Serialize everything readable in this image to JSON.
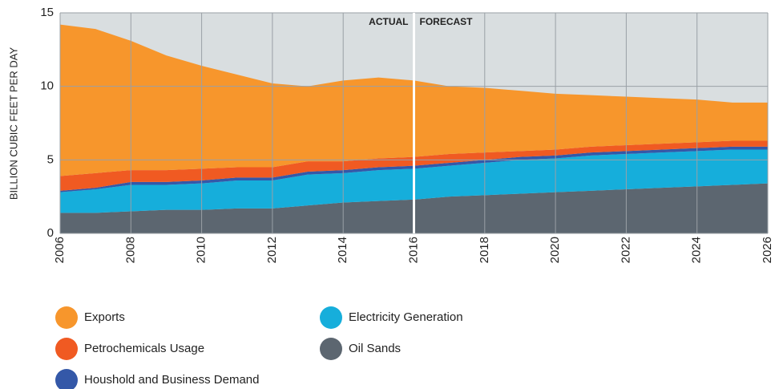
{
  "chart_data": {
    "type": "stacked_area",
    "y_label": "BILLION CUBIC FEET PER DAY",
    "annotations": [
      {
        "text": "ACTUAL",
        "side": "left"
      },
      {
        "text": "FORECAST",
        "side": "right"
      }
    ],
    "divider_x": 2016,
    "x": [
      2006,
      2007,
      2008,
      2009,
      2010,
      2011,
      2012,
      2013,
      2014,
      2015,
      2016,
      2017,
      2018,
      2019,
      2020,
      2021,
      2022,
      2023,
      2024,
      2025,
      2026
    ],
    "series": [
      {
        "name": "Oil Sands",
        "color": "#5c6670",
        "values": [
          1.4,
          1.4,
          1.5,
          1.6,
          1.6,
          1.7,
          1.7,
          1.9,
          2.1,
          2.2,
          2.3,
          2.5,
          2.6,
          2.7,
          2.8,
          2.9,
          3.0,
          3.1,
          3.2,
          3.3,
          3.4
        ]
      },
      {
        "name": "Electricity Generation",
        "color": "#16aedb",
        "values": [
          1.4,
          1.6,
          1.8,
          1.7,
          1.8,
          1.9,
          1.9,
          2.1,
          2.0,
          2.1,
          2.1,
          2.1,
          2.2,
          2.3,
          2.3,
          2.4,
          2.4,
          2.4,
          2.4,
          2.4,
          2.3
        ]
      },
      {
        "name": "Houshold and Business Demand",
        "color": "#3458a8",
        "values": [
          0.1,
          0.1,
          0.2,
          0.2,
          0.2,
          0.2,
          0.2,
          0.2,
          0.2,
          0.2,
          0.2,
          0.2,
          0.2,
          0.2,
          0.2,
          0.2,
          0.2,
          0.2,
          0.2,
          0.2,
          0.2
        ]
      },
      {
        "name": "Petrochemicals Usage",
        "color": "#f05a22",
        "values": [
          1.0,
          1.0,
          0.8,
          0.8,
          0.8,
          0.7,
          0.7,
          0.7,
          0.6,
          0.6,
          0.6,
          0.6,
          0.5,
          0.4,
          0.4,
          0.4,
          0.4,
          0.4,
          0.4,
          0.4,
          0.4
        ]
      },
      {
        "name": "Exports",
        "color": "#f7962c",
        "values": [
          10.3,
          9.8,
          8.8,
          7.8,
          7.0,
          6.3,
          5.7,
          5.1,
          5.5,
          5.5,
          5.2,
          4.6,
          4.4,
          4.1,
          3.8,
          3.5,
          3.3,
          3.1,
          2.9,
          2.6,
          2.6
        ]
      }
    ],
    "xlim": [
      2006,
      2026
    ],
    "xticks": [
      2006,
      2008,
      2010,
      2012,
      2014,
      2016,
      2018,
      2020,
      2022,
      2024,
      2026
    ],
    "ylim": [
      0,
      15
    ],
    "yticks": [
      0,
      5,
      10,
      15
    ],
    "grid": true
  }
}
